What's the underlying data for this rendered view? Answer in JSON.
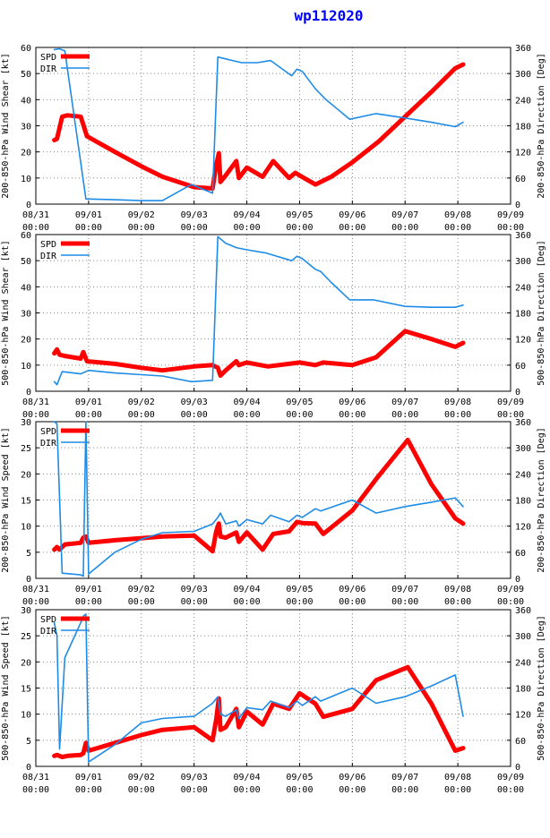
{
  "title": "wp112020",
  "colors": {
    "spd": "#ff0000",
    "dir": "#1e8ce6",
    "title": "#0000ff",
    "axis": "#000000",
    "grid": "#888888"
  },
  "legend": {
    "spd": "SPD",
    "dir": "DIR"
  },
  "x_ticks": [
    "08/31\n00:00",
    "09/01\n00:00",
    "09/02\n00:00",
    "09/03\n00:00",
    "09/04\n00:00",
    "09/05\n00:00",
    "09/06\n00:00",
    "09/07\n00:00",
    "09/08\n00:00",
    "09/09\n00:00"
  ],
  "chart_data": [
    {
      "type": "line",
      "ylabel": "200-850-hPa Wind Shear [kt]",
      "y2label": "200-850-hPa Direction [Deg]",
      "xlim": [
        0,
        9
      ],
      "ylim": [
        0,
        60
      ],
      "y2lim": [
        0,
        360
      ],
      "yticks": [
        0,
        10,
        20,
        30,
        40,
        50,
        60
      ],
      "y2ticks": [
        0,
        60,
        120,
        180,
        240,
        300,
        360
      ],
      "series": [
        {
          "name": "SPD",
          "axis": "left",
          "x": [
            0.35,
            0.4,
            0.5,
            0.6,
            0.85,
            0.97,
            1.5,
            2.0,
            2.4,
            3.0,
            3.35,
            3.42,
            3.47,
            3.5,
            3.6,
            3.8,
            3.85,
            4.0,
            4.3,
            4.5,
            4.8,
            4.92,
            5.0,
            5.3,
            5.6,
            6.0,
            6.5,
            7.0,
            7.5,
            7.95,
            8.1
          ],
          "y": [
            24.5,
            25,
            33.5,
            34,
            33.5,
            26,
            20,
            14.5,
            10.5,
            6.5,
            6,
            15,
            19.5,
            8.5,
            11,
            16.5,
            10,
            14,
            10.5,
            16.5,
            10,
            12,
            11,
            7.5,
            10.5,
            16,
            24,
            33.5,
            43,
            52,
            53.5
          ]
        },
        {
          "name": "DIR",
          "axis": "right",
          "x": [
            0.35,
            0.45,
            0.55,
            0.95,
            1.5,
            2.0,
            2.4,
            2.95,
            3.35,
            3.45,
            3.9,
            4.2,
            4.45,
            4.85,
            4.95,
            5.05,
            5.3,
            5.5,
            5.95,
            6.45,
            7.0,
            7.5,
            7.95,
            8.1
          ],
          "y": [
            355,
            357,
            352,
            12,
            10,
            8,
            8,
            45,
            25,
            338,
            325,
            325,
            330,
            295,
            310,
            305,
            265,
            240,
            195,
            208,
            198,
            188,
            178,
            188
          ]
        }
      ]
    },
    {
      "type": "line",
      "ylabel": "500-850-hPa Wind Shear [kt]",
      "y2label": "500-850-hPa Direction [Deg]",
      "xlim": [
        0,
        9
      ],
      "ylim": [
        0,
        60
      ],
      "y2lim": [
        0,
        360
      ],
      "yticks": [
        0,
        10,
        20,
        30,
        40,
        50,
        60
      ],
      "y2ticks": [
        0,
        60,
        120,
        180,
        240,
        300,
        360
      ],
      "series": [
        {
          "name": "SPD",
          "axis": "left",
          "x": [
            0.35,
            0.4,
            0.45,
            0.55,
            0.85,
            0.9,
            0.97,
            1.5,
            2.0,
            2.4,
            3.0,
            3.35,
            3.45,
            3.5,
            3.6,
            3.8,
            3.85,
            4.0,
            4.4,
            4.8,
            5.0,
            5.3,
            5.45,
            6.0,
            6.45,
            7.0,
            7.5,
            7.95,
            8.1
          ],
          "y": [
            14.5,
            16,
            14,
            13.5,
            12.5,
            15,
            11.5,
            10.5,
            9,
            8,
            9.5,
            10,
            9,
            6,
            8,
            11.5,
            10,
            11,
            9.5,
            10.5,
            11,
            10,
            11,
            10,
            13,
            23,
            20,
            17,
            18.5
          ]
        },
        {
          "name": "DIR",
          "axis": "right",
          "x": [
            0.35,
            0.4,
            0.5,
            0.85,
            1.0,
            1.5,
            2.0,
            2.4,
            2.95,
            3.35,
            3.45,
            3.6,
            3.8,
            4.0,
            4.35,
            4.85,
            4.95,
            5.05,
            5.3,
            5.4,
            5.6,
            5.95,
            6.4,
            7.0,
            7.5,
            7.95,
            8.1
          ],
          "y": [
            22,
            15,
            45,
            40,
            48,
            42,
            38,
            35,
            22,
            25,
            355,
            340,
            330,
            325,
            318,
            300,
            310,
            305,
            280,
            275,
            250,
            210,
            210,
            195,
            193,
            193,
            198
          ]
        }
      ]
    },
    {
      "type": "line",
      "ylabel": "200-850-hPa Wind Speed [kt]",
      "y2label": "200-850-hPa Direction [Deg]",
      "xlim": [
        0,
        9
      ],
      "ylim": [
        0,
        30
      ],
      "y2lim": [
        0,
        360
      ],
      "yticks": [
        0,
        5,
        10,
        15,
        20,
        25,
        30
      ],
      "y2ticks": [
        0,
        60,
        120,
        180,
        240,
        300,
        360
      ],
      "series": [
        {
          "name": "SPD",
          "axis": "left",
          "x": [
            0.35,
            0.4,
            0.45,
            0.55,
            0.85,
            0.9,
            0.95,
            1.0,
            1.5,
            2.0,
            2.4,
            3.0,
            3.35,
            3.42,
            3.47,
            3.5,
            3.6,
            3.8,
            3.85,
            4.0,
            4.3,
            4.5,
            4.8,
            4.95,
            5.05,
            5.3,
            5.45,
            6.0,
            6.45,
            7.05,
            7.5,
            7.95,
            8.1
          ],
          "y": [
            5.5,
            6,
            5.5,
            6.5,
            6.8,
            7.8,
            8,
            6.8,
            7.3,
            7.7,
            8,
            8.2,
            5.2,
            9,
            10.5,
            8,
            7.8,
            8.8,
            7,
            8.8,
            5.5,
            8.5,
            9,
            10.8,
            10.6,
            10.5,
            8.5,
            13,
            19,
            26.5,
            18,
            11.5,
            10.5
          ]
        },
        {
          "name": "DIR",
          "axis": "right",
          "x": [
            0.35,
            0.4,
            0.5,
            0.85,
            0.9,
            0.95,
            1.0,
            1.5,
            2.0,
            2.4,
            3.0,
            3.35,
            3.45,
            3.5,
            3.6,
            3.8,
            3.85,
            4.0,
            4.3,
            4.45,
            4.8,
            4.95,
            5.05,
            5.3,
            5.4,
            6.0,
            6.45,
            7.0,
            7.5,
            7.95,
            8.1
          ],
          "y": [
            360,
            355,
            12,
            8,
            5,
            360,
            10,
            60,
            90,
            105,
            108,
            125,
            140,
            150,
            125,
            132,
            120,
            135,
            125,
            145,
            130,
            145,
            140,
            160,
            155,
            180,
            150,
            165,
            175,
            185,
            165
          ]
        }
      ]
    },
    {
      "type": "line",
      "ylabel": "500-850-hPa Wind Speed [kt]",
      "y2label": "500-850-hPa Direction [Deg]",
      "xlim": [
        0,
        9
      ],
      "ylim": [
        0,
        30
      ],
      "y2lim": [
        0,
        360
      ],
      "yticks": [
        0,
        5,
        10,
        15,
        20,
        25,
        30
      ],
      "y2ticks": [
        0,
        60,
        120,
        180,
        240,
        300,
        360
      ],
      "series": [
        {
          "name": "SPD",
          "axis": "left",
          "x": [
            0.35,
            0.4,
            0.5,
            0.6,
            0.85,
            0.9,
            0.95,
            1.0,
            1.5,
            2.0,
            2.4,
            3.0,
            3.35,
            3.42,
            3.47,
            3.5,
            3.6,
            3.8,
            3.85,
            4.0,
            4.3,
            4.5,
            4.8,
            5.0,
            5.3,
            5.45,
            6.0,
            6.45,
            7.05,
            7.5,
            7.95,
            8.1
          ],
          "y": [
            2,
            2.2,
            1.8,
            2,
            2.2,
            2.5,
            4.5,
            3,
            4.5,
            6,
            7,
            7.5,
            5,
            9,
            13,
            7,
            7.5,
            11,
            7.5,
            10.5,
            8,
            12,
            11,
            14,
            12,
            9.5,
            11,
            16.5,
            19,
            12,
            3,
            3.5
          ]
        },
        {
          "name": "DIR",
          "axis": "right",
          "x": [
            0.35,
            0.4,
            0.45,
            0.55,
            0.85,
            0.9,
            0.95,
            1.0,
            1.5,
            2.0,
            2.4,
            3.0,
            3.35,
            3.45,
            3.5,
            3.6,
            3.8,
            3.85,
            4.0,
            4.3,
            4.45,
            4.8,
            4.95,
            5.05,
            5.3,
            5.4,
            6.0,
            6.45,
            7.0,
            7.5,
            7.95,
            8.1
          ],
          "y": [
            330,
            300,
            40,
            250,
            330,
            345,
            350,
            10,
            50,
            100,
            110,
            115,
            145,
            160,
            120,
            115,
            130,
            110,
            135,
            130,
            150,
            135,
            150,
            140,
            160,
            150,
            180,
            145,
            160,
            185,
            210,
            115
          ]
        }
      ]
    }
  ]
}
